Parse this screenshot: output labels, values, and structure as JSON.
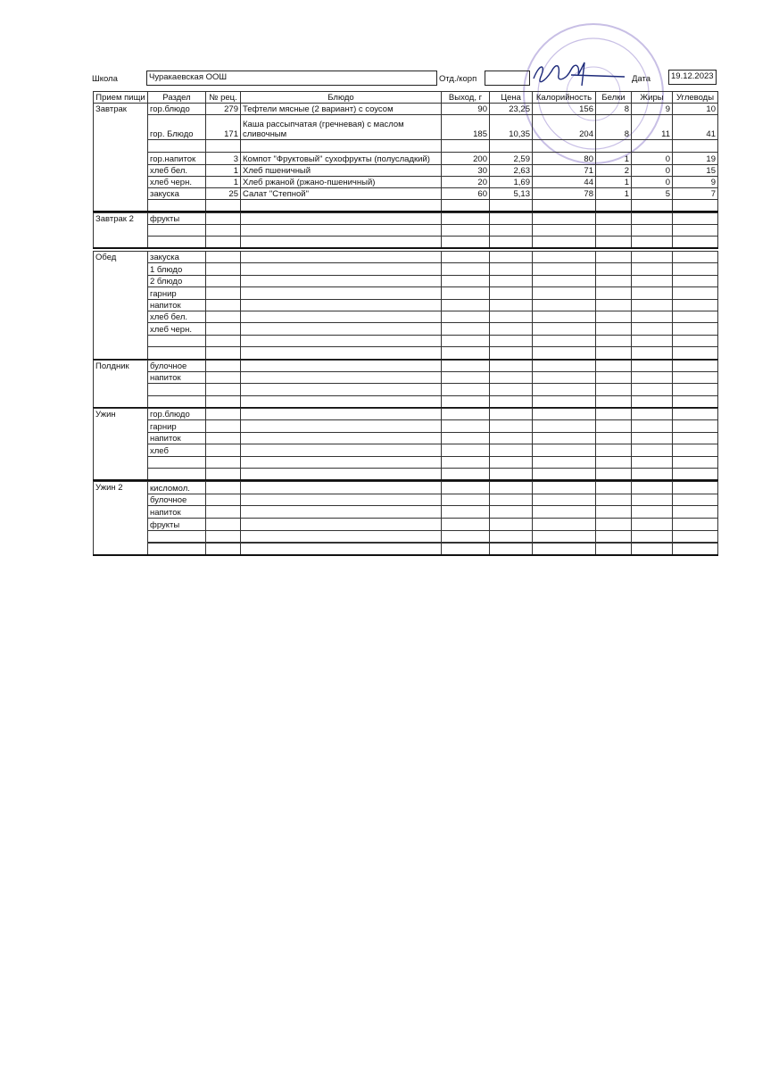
{
  "header": {
    "school_label": "Школа",
    "school": "Чуракаевская ООШ",
    "dept_label": "Отд./корп",
    "date_label": "Дата",
    "date": "19.12.2023"
  },
  "table": {
    "columns": [
      "Прием пищи",
      "Раздел",
      "№ рец.",
      "Блюдо",
      "Выход, г",
      "Цена",
      "Калорийность",
      "Белки",
      "Жиры",
      "Углеводы"
    ],
    "groups": [
      {
        "meal": "Завтрак",
        "items": [
          {
            "section": "гор.блюдо",
            "recipe": 279,
            "dish": "Тефтели мясные (2 вариант) с соусом",
            "yield": 90,
            "price": "23,25",
            "kcal": 156,
            "protein": 8,
            "fat": 9,
            "carbs": 10
          },
          {
            "section": "гор. Блюдо",
            "recipe": 171,
            "dish": "Каша рассыпчатая (гречневая) с маслом сливочным",
            "yield": 185,
            "price": "10,35",
            "kcal": 204,
            "protein": 8,
            "fat": 11,
            "carbs": 41
          },
          {
            "section": "гор.напиток",
            "recipe": 3,
            "dish": "Компот \"Фруктовый\" сухофрукты (полусладкий)",
            "yield": 200,
            "price": "2,59",
            "kcal": 80,
            "protein": 1,
            "fat": 0,
            "carbs": 19
          },
          {
            "section": "хлеб бел.",
            "recipe": 1,
            "dish": "Хлеб пшеничный",
            "yield": 30,
            "price": "2,63",
            "kcal": 71,
            "protein": 2,
            "fat": 0,
            "carbs": 15
          },
          {
            "section": "хлеб черн.",
            "recipe": 1,
            "dish": "Хлеб ржаной (ржано-пшеничный)",
            "yield": 20,
            "price": "1,69",
            "kcal": 44,
            "protein": 1,
            "fat": 0,
            "carbs": 9
          },
          {
            "section": "закуска",
            "recipe": 25,
            "dish": "Салат \"Степной\"",
            "yield": 60,
            "price": "5,13",
            "kcal": 78,
            "protein": 1,
            "fat": 5,
            "carbs": 7
          }
        ]
      },
      {
        "meal": "Завтрак 2",
        "items": [
          {
            "section": "фрукты"
          }
        ]
      },
      {
        "meal": "Обед",
        "items": [
          {
            "section": "закуска"
          },
          {
            "section": "1 блюдо"
          },
          {
            "section": "2 блюдо"
          },
          {
            "section": "гарнир"
          },
          {
            "section": "напиток"
          },
          {
            "section": "хлеб бел."
          },
          {
            "section": "хлеб черн."
          }
        ]
      },
      {
        "meal": "Полдник",
        "items": [
          {
            "section": "булочное"
          },
          {
            "section": "напиток"
          }
        ]
      },
      {
        "meal": "Ужин",
        "items": [
          {
            "section": "гор.блюдо"
          },
          {
            "section": "гарнир"
          },
          {
            "section": "напиток"
          },
          {
            "section": "хлеб"
          }
        ]
      },
      {
        "meal": "Ужин 2",
        "items": [
          {
            "section": "кисломол."
          },
          {
            "section": "булочное"
          },
          {
            "section": "напиток"
          },
          {
            "section": "фрукты"
          }
        ]
      }
    ]
  }
}
